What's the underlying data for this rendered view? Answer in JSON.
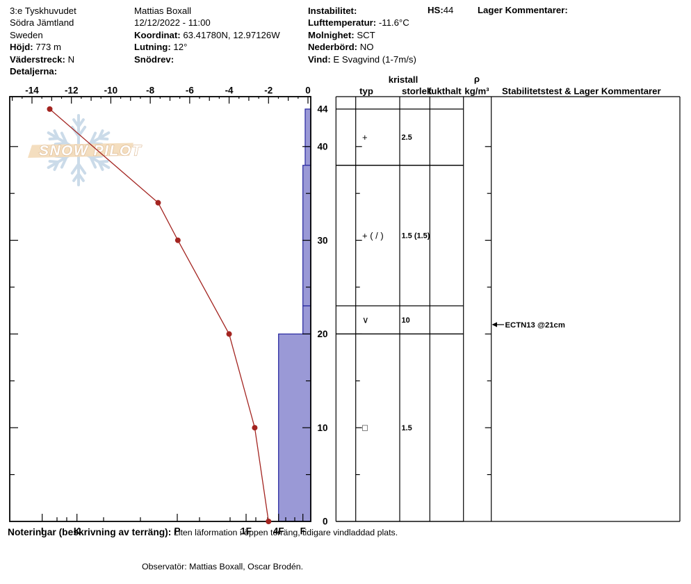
{
  "header": {
    "col1": [
      {
        "label": "",
        "value": "3:e Tyskhuvudet"
      },
      {
        "label": "",
        "value": "Södra Jämtland"
      },
      {
        "label": "",
        "value": "Sweden"
      },
      {
        "label": "Höjd:",
        "value": "773 m"
      },
      {
        "label": "Väderstreck:",
        "value": "N"
      },
      {
        "label": "Detaljerna:",
        "value": ""
      }
    ],
    "col2": [
      {
        "label": "",
        "value": "Mattias Boxall"
      },
      {
        "label": "",
        "value": "12/12/2022 - 11:00"
      },
      {
        "label": "Koordinat:",
        "value": "63.41780N, 12.97126W"
      },
      {
        "label": "Lutning:",
        "value": "12°"
      },
      {
        "label": "Snödrev:",
        "value": ""
      }
    ],
    "col3": [
      {
        "label": "Instabilitet:",
        "value": ""
      },
      {
        "label": "Lufttemperatur:",
        "value": "-11.6°C"
      },
      {
        "label": "Molnighet:",
        "value": "SCT"
      },
      {
        "label": "Nederbörd:",
        "value": "NO"
      },
      {
        "label": "Vind:",
        "value": "E Svagvind (1-7m/s)"
      }
    ],
    "hs_label": "HS:",
    "hs_value": "44",
    "lager_kommentarer_label": "Lager Kommentarer:"
  },
  "watermark": {
    "text": "SNOW PILOT"
  },
  "chart_data": {
    "type": "snow-profile (line temperature + bar hardness)",
    "temp_axis": {
      "ticks": [
        -14,
        -12,
        -10,
        -8,
        -6,
        -4,
        -2,
        0
      ],
      "range": [
        -15.1,
        0.15
      ],
      "unit": "°C"
    },
    "height_axis": {
      "tick_labels": [
        44,
        40,
        30,
        20,
        10,
        0
      ],
      "range": [
        0,
        45.3
      ],
      "unit": "cm"
    },
    "hardness_axis": {
      "labels": [
        "I",
        "K",
        "P",
        "1F",
        "4F",
        "F"
      ]
    },
    "temperature_profile": {
      "heights_cm": [
        44,
        34,
        30,
        20,
        10,
        0
      ],
      "temps_c": [
        -13.1,
        -7.6,
        -6.6,
        -4.0,
        -2.7,
        -2.0
      ]
    },
    "layers": [
      {
        "top_cm": 44,
        "bottom_cm": 40,
        "hardness": "F-"
      },
      {
        "top_cm": 40,
        "bottom_cm": 38,
        "hardness": "F-"
      },
      {
        "top_cm": 38,
        "bottom_cm": 23,
        "hardness": "F"
      },
      {
        "top_cm": 23,
        "bottom_cm": 20,
        "hardness": "F"
      },
      {
        "top_cm": 20,
        "bottom_cm": 0,
        "hardness": "4F"
      }
    ],
    "colors": {
      "temp_line": "#a32420",
      "bar_fill": "#9a99d6",
      "bar_stroke": "#2e2ea3",
      "snowflake": "#cbdbe9",
      "band_fill": "#f3dcba",
      "band_text_stroke": "#dbb68f"
    }
  },
  "table": {
    "headers": {
      "kristall": "kristall",
      "typ": "typ",
      "storlek": "storlek",
      "fukthalt": "fukthalt",
      "rho": "ρ",
      "rho_unit": "kg/m³",
      "stability": "Stabilitetstest & Lager Kommentarer"
    },
    "rows": [
      {
        "top_cm": 44,
        "bottom_cm": 38,
        "typ": "+",
        "storlek": "2.5",
        "fukthalt": "",
        "rho": "",
        "comment": ""
      },
      {
        "top_cm": 38,
        "bottom_cm": 23,
        "typ": "+ ( / )",
        "storlek": "1.5 (1.5)",
        "fukthalt": "",
        "rho": "",
        "comment": ""
      },
      {
        "top_cm": 23,
        "bottom_cm": 20,
        "typ": "∨",
        "storlek": "10",
        "fukthalt": "",
        "rho": "",
        "comment": ""
      },
      {
        "top_cm": 20,
        "bottom_cm": 0,
        "typ": "□",
        "storlek": "1.5",
        "fukthalt": "",
        "rho": "",
        "comment": ""
      }
    ],
    "stability_tests": [
      {
        "text": "ECTN13 @21cm",
        "height_cm": 21
      }
    ]
  },
  "footer": {
    "noteringar_label": "Noteringar (beskrivning av terräng):",
    "noteringar_text": "Liten läformation i öppen terräng, tidigare vindladdad plats.",
    "observator": "Observatör: Mattias Boxall, Oscar Brodén."
  }
}
